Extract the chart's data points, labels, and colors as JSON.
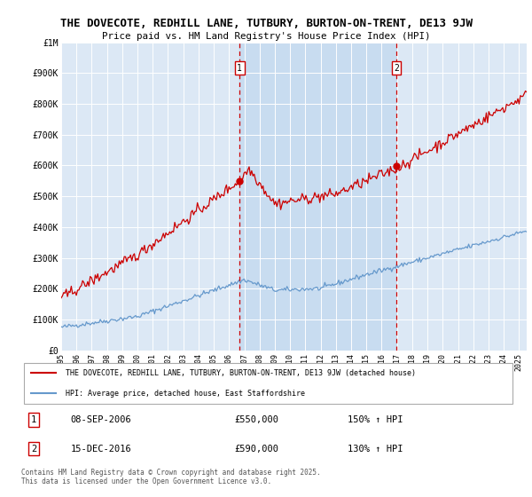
{
  "title_line1": "THE DOVECOTE, REDHILL LANE, TUTBURY, BURTON-ON-TRENT, DE13 9JW",
  "title_line2": "Price paid vs. HM Land Registry's House Price Index (HPI)",
  "ylim": [
    0,
    1000000
  ],
  "xlim_start": 1995.0,
  "xlim_end": 2025.5,
  "red_line_color": "#cc0000",
  "blue_line_color": "#6699cc",
  "background_color": "#dce8f5",
  "sale_region_color": "#ccdcef",
  "sale1_date": "08-SEP-2006",
  "sale1_price": 550000,
  "sale1_hpi": "150% ↑ HPI",
  "sale1_year": 2006.69,
  "sale2_date": "15-DEC-2016",
  "sale2_price": 590000,
  "sale2_hpi": "130% ↑ HPI",
  "sale2_year": 2016.96,
  "legend_label_red": "THE DOVECOTE, REDHILL LANE, TUTBURY, BURTON-ON-TRENT, DE13 9JW (detached house)",
  "legend_label_blue": "HPI: Average price, detached house, East Staffordshire",
  "footnote": "Contains HM Land Registry data © Crown copyright and database right 2025.\nThis data is licensed under the Open Government Licence v3.0.",
  "yticks": [
    0,
    100000,
    200000,
    300000,
    400000,
    500000,
    600000,
    700000,
    800000,
    900000,
    1000000
  ],
  "ytick_labels": [
    "£0",
    "£100K",
    "£200K",
    "£300K",
    "£400K",
    "£500K",
    "£600K",
    "£700K",
    "£800K",
    "£900K",
    "£1M"
  ]
}
